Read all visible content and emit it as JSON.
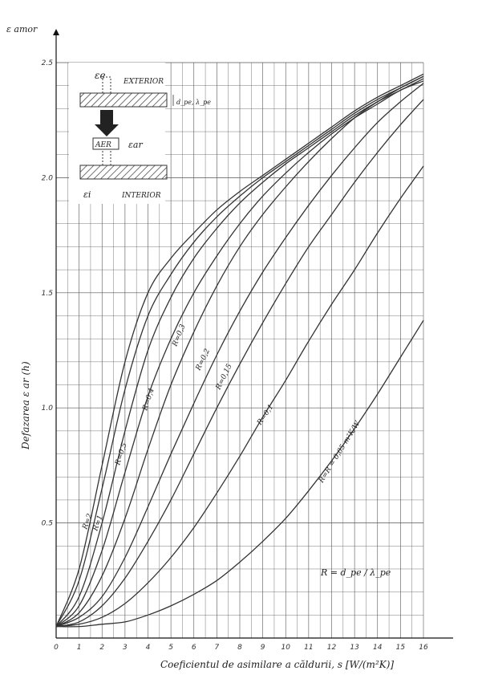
{
  "chart_data": {
    "type": "line",
    "title": "",
    "y_symbol": "ε amor",
    "ylabel": "Defazarea  ε ar  (h)",
    "xlabel": "Coeficientul  de  asimilare  a  căldurii,  s [W/(m²K)]",
    "xlim": [
      0,
      16
    ],
    "ylim": [
      0,
      2.5
    ],
    "x_ticks": [
      "0",
      "1",
      "2",
      "3",
      "4",
      "5",
      "6",
      "7",
      "8",
      "9",
      "10",
      "11",
      "12",
      "13",
      "14",
      "15",
      "16"
    ],
    "y_ticks": [
      "0.5",
      "1.0",
      "1.5",
      "2.0",
      "2.5"
    ],
    "grid": true,
    "series": [
      {
        "name": "R=2",
        "points": [
          [
            0,
            0.05
          ],
          [
            1,
            0.3
          ],
          [
            2,
            0.75
          ],
          [
            3,
            1.2
          ],
          [
            4,
            1.5
          ],
          [
            5,
            1.65
          ],
          [
            6,
            1.76
          ],
          [
            7,
            1.86
          ],
          [
            8,
            1.94
          ],
          [
            9,
            2.01
          ],
          [
            10,
            2.08
          ],
          [
            11,
            2.15
          ],
          [
            12,
            2.22
          ],
          [
            13,
            2.29
          ],
          [
            14,
            2.35
          ],
          [
            15,
            2.4
          ],
          [
            16,
            2.45
          ]
        ]
      },
      {
        "name": "R=1",
        "points": [
          [
            0,
            0.05
          ],
          [
            1,
            0.25
          ],
          [
            2,
            0.65
          ],
          [
            3,
            1.08
          ],
          [
            4,
            1.4
          ],
          [
            5,
            1.58
          ],
          [
            6,
            1.72
          ],
          [
            7,
            1.83
          ],
          [
            8,
            1.92
          ],
          [
            9,
            2.0
          ],
          [
            10,
            2.07
          ],
          [
            11,
            2.14
          ],
          [
            12,
            2.21
          ],
          [
            13,
            2.28
          ],
          [
            14,
            2.34
          ],
          [
            15,
            2.39
          ],
          [
            16,
            2.44
          ]
        ]
      },
      {
        "name": "R=0.5",
        "points": [
          [
            0,
            0.05
          ],
          [
            1,
            0.18
          ],
          [
            2,
            0.5
          ],
          [
            3,
            0.9
          ],
          [
            4,
            1.25
          ],
          [
            5,
            1.48
          ],
          [
            6,
            1.65
          ],
          [
            7,
            1.78
          ],
          [
            8,
            1.89
          ],
          [
            9,
            1.98
          ],
          [
            10,
            2.06
          ],
          [
            11,
            2.13
          ],
          [
            12,
            2.2
          ],
          [
            13,
            2.27
          ],
          [
            14,
            2.33
          ],
          [
            15,
            2.38
          ],
          [
            16,
            2.43
          ]
        ]
      },
      {
        "name": "R=0.4",
        "points": [
          [
            0,
            0.05
          ],
          [
            1,
            0.14
          ],
          [
            2,
            0.38
          ],
          [
            3,
            0.72
          ],
          [
            4,
            1.05
          ],
          [
            5,
            1.3
          ],
          [
            6,
            1.5
          ],
          [
            7,
            1.66
          ],
          [
            8,
            1.8
          ],
          [
            9,
            1.92
          ],
          [
            10,
            2.02
          ],
          [
            11,
            2.11
          ],
          [
            12,
            2.19
          ],
          [
            13,
            2.26
          ],
          [
            14,
            2.32
          ],
          [
            15,
            2.38
          ],
          [
            16,
            2.42
          ]
        ]
      },
      {
        "name": "R=0.3",
        "points": [
          [
            0,
            0.05
          ],
          [
            1,
            0.11
          ],
          [
            2,
            0.27
          ],
          [
            3,
            0.52
          ],
          [
            4,
            0.82
          ],
          [
            5,
            1.1
          ],
          [
            6,
            1.33
          ],
          [
            7,
            1.53
          ],
          [
            8,
            1.7
          ],
          [
            9,
            1.84
          ],
          [
            10,
            1.96
          ],
          [
            11,
            2.07
          ],
          [
            12,
            2.17
          ],
          [
            13,
            2.26
          ],
          [
            14,
            2.33
          ],
          [
            15,
            2.39
          ],
          [
            16,
            2.44
          ]
        ]
      },
      {
        "name": "R=0.2",
        "points": [
          [
            0,
            0.05
          ],
          [
            1,
            0.09
          ],
          [
            2,
            0.18
          ],
          [
            3,
            0.35
          ],
          [
            4,
            0.57
          ],
          [
            5,
            0.8
          ],
          [
            6,
            1.02
          ],
          [
            7,
            1.23
          ],
          [
            8,
            1.42
          ],
          [
            9,
            1.59
          ],
          [
            10,
            1.74
          ],
          [
            11,
            1.88
          ],
          [
            12,
            2.01
          ],
          [
            13,
            2.13
          ],
          [
            14,
            2.24
          ],
          [
            15,
            2.33
          ],
          [
            16,
            2.41
          ]
        ]
      },
      {
        "name": "R=0.15",
        "points": [
          [
            0,
            0.05
          ],
          [
            1,
            0.07
          ],
          [
            2,
            0.14
          ],
          [
            3,
            0.26
          ],
          [
            4,
            0.42
          ],
          [
            5,
            0.6
          ],
          [
            6,
            0.8
          ],
          [
            7,
            1.0
          ],
          [
            8,
            1.19
          ],
          [
            9,
            1.37
          ],
          [
            10,
            1.54
          ],
          [
            11,
            1.7
          ],
          [
            12,
            1.84
          ],
          [
            13,
            1.98
          ],
          [
            14,
            2.11
          ],
          [
            15,
            2.23
          ],
          [
            16,
            2.34
          ]
        ]
      },
      {
        "name": "R=0.1",
        "points": [
          [
            0,
            0.05
          ],
          [
            1,
            0.06
          ],
          [
            2,
            0.09
          ],
          [
            3,
            0.15
          ],
          [
            4,
            0.24
          ],
          [
            5,
            0.35
          ],
          [
            6,
            0.48
          ],
          [
            7,
            0.63
          ],
          [
            8,
            0.79
          ],
          [
            9,
            0.96
          ],
          [
            10,
            1.12
          ],
          [
            11,
            1.29
          ],
          [
            12,
            1.45
          ],
          [
            13,
            1.6
          ],
          [
            14,
            1.76
          ],
          [
            15,
            1.91
          ],
          [
            16,
            2.05
          ]
        ]
      },
      {
        "name": "R=0.05",
        "points": [
          [
            0,
            0.05
          ],
          [
            1,
            0.05
          ],
          [
            2,
            0.06
          ],
          [
            3,
            0.07
          ],
          [
            4,
            0.1
          ],
          [
            5,
            0.14
          ],
          [
            6,
            0.19
          ],
          [
            7,
            0.25
          ],
          [
            8,
            0.33
          ],
          [
            9,
            0.42
          ],
          [
            10,
            0.52
          ],
          [
            11,
            0.64
          ],
          [
            12,
            0.77
          ],
          [
            13,
            0.91
          ],
          [
            14,
            1.06
          ],
          [
            15,
            1.22
          ],
          [
            16,
            1.38
          ]
        ]
      }
    ],
    "curve_labels": [
      "R=2",
      "R=1",
      "R=0,5",
      "R=0,4",
      "R=0,3",
      "R=0,2",
      "R=0,15",
      "R=0,1",
      "R=R = 0,05 m²K/W"
    ],
    "formula_label": "R = d_pe / λ_pe",
    "inset": {
      "top_symbol": "εe",
      "top_label": "EXTERIOR",
      "thickness_label": "d_pe, λ_pe",
      "air_label": "AER",
      "air_symbol": "εar",
      "bottom_symbol": "εi",
      "bottom_label": "INTERIOR"
    },
    "line_color": "#333333",
    "grid_color": "#555555"
  }
}
